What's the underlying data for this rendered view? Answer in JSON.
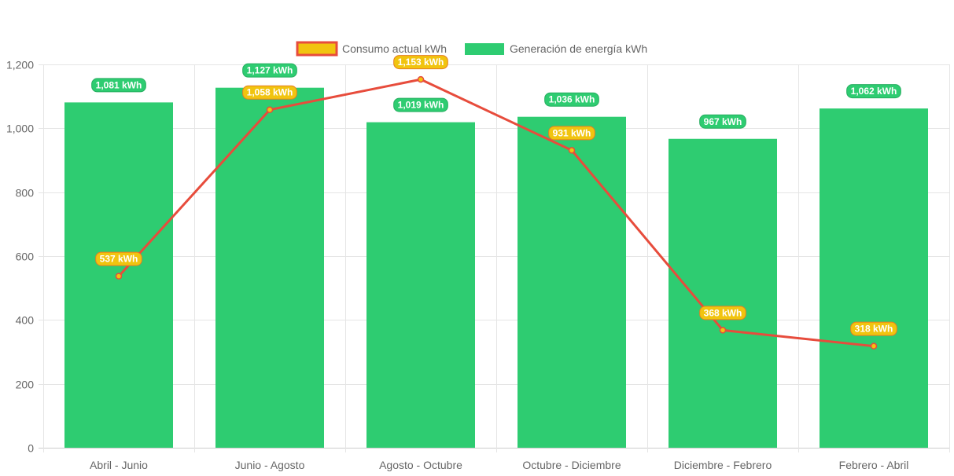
{
  "chart_data": {
    "type": "bar",
    "categories": [
      "Abril - Junio",
      "Junio - Agosto",
      "Agosto - Octubre",
      "Octubre - Diciembre",
      "Diciembre - Febrero",
      "Febrero - Abril"
    ],
    "series": [
      {
        "name": "Consumo actual kWh",
        "type": "line",
        "values": [
          537,
          1058,
          1153,
          931,
          368,
          318
        ],
        "labels": [
          "537 kWh",
          "1,058 kWh",
          "1,153 kWh",
          "931 kWh",
          "368 kWh",
          "318 kWh"
        ],
        "line_color": "#e74c3c",
        "fill_color": "#f1c40f"
      },
      {
        "name": "Generación de energía kWh",
        "type": "bar",
        "values": [
          1081,
          1127,
          1019,
          1036,
          967,
          1062
        ],
        "labels": [
          "1,081 kWh",
          "1,127 kWh",
          "1,019 kWh",
          "1,036 kWh",
          "967 kWh",
          "1,062 kWh"
        ],
        "color": "#2ecc71"
      }
    ],
    "y_ticks": [
      "0",
      "200",
      "400",
      "600",
      "800",
      "1,000",
      "1,200"
    ],
    "ylim": [
      0,
      1200
    ],
    "grid": true,
    "legend_position": "top-center",
    "title": "",
    "xlabel": "",
    "ylabel": ""
  }
}
